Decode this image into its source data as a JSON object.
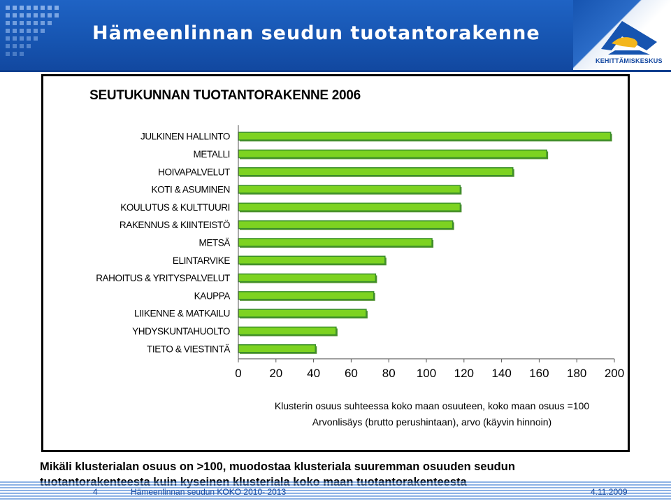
{
  "slide": {
    "title": "Hämeenlinnan seudun tuotantorakenne",
    "logo_text": "KEHITTÄMISKESKUS",
    "footnote_line1": "Mikäli klusterialan osuus on >100, muodostaa klusteriala suuremman osuuden seudun",
    "footnote_line2": "tuotantorakenteesta kuin kyseinen klusteriala koko maan tuotantorakenteesta",
    "page_number": "4",
    "footer_text": "Hämeenlinnan seudun KOKO 2010- 2013",
    "date": "4.11.2009"
  },
  "chart_data": {
    "type": "bar",
    "orientation": "horizontal",
    "title": "SEUTUKUNNAN TUOTANTORAKENNE 2006",
    "categories": [
      "JULKINEN HALLINTO",
      "METALLI",
      "HOIVAPALVELUT",
      "KOTI & ASUMINEN",
      "KOULUTUS & KULTTUURI",
      "RAKENNUS & KIINTEISTÖ",
      "METSÄ",
      "ELINTARVIKE",
      "RAHOITUS & YRITYSPALVELUT",
      "KAUPPA",
      "LIIKENNE & MATKAILU",
      "YHDYSKUNTAHUOLTO",
      "TIETO & VIESTINTÄ"
    ],
    "values": [
      198,
      164,
      146,
      118,
      118,
      114,
      103,
      78,
      73,
      72,
      68,
      52,
      41
    ],
    "xlim": [
      0,
      200
    ],
    "xticks": [
      "0",
      "20",
      "40",
      "60",
      "80",
      "100",
      "120",
      "140",
      "160",
      "180",
      "200"
    ],
    "xlabel_line1": "Klusterin osuus suhteessa koko maan osuuteen, koko maan osuus =100",
    "xlabel_line2": "Arvonlisäys (brutto perushintaan), arvo (käyvin hinnoin)",
    "bar_color": "#7dd321",
    "bar_border": "#3a8f2a",
    "grid": false
  }
}
